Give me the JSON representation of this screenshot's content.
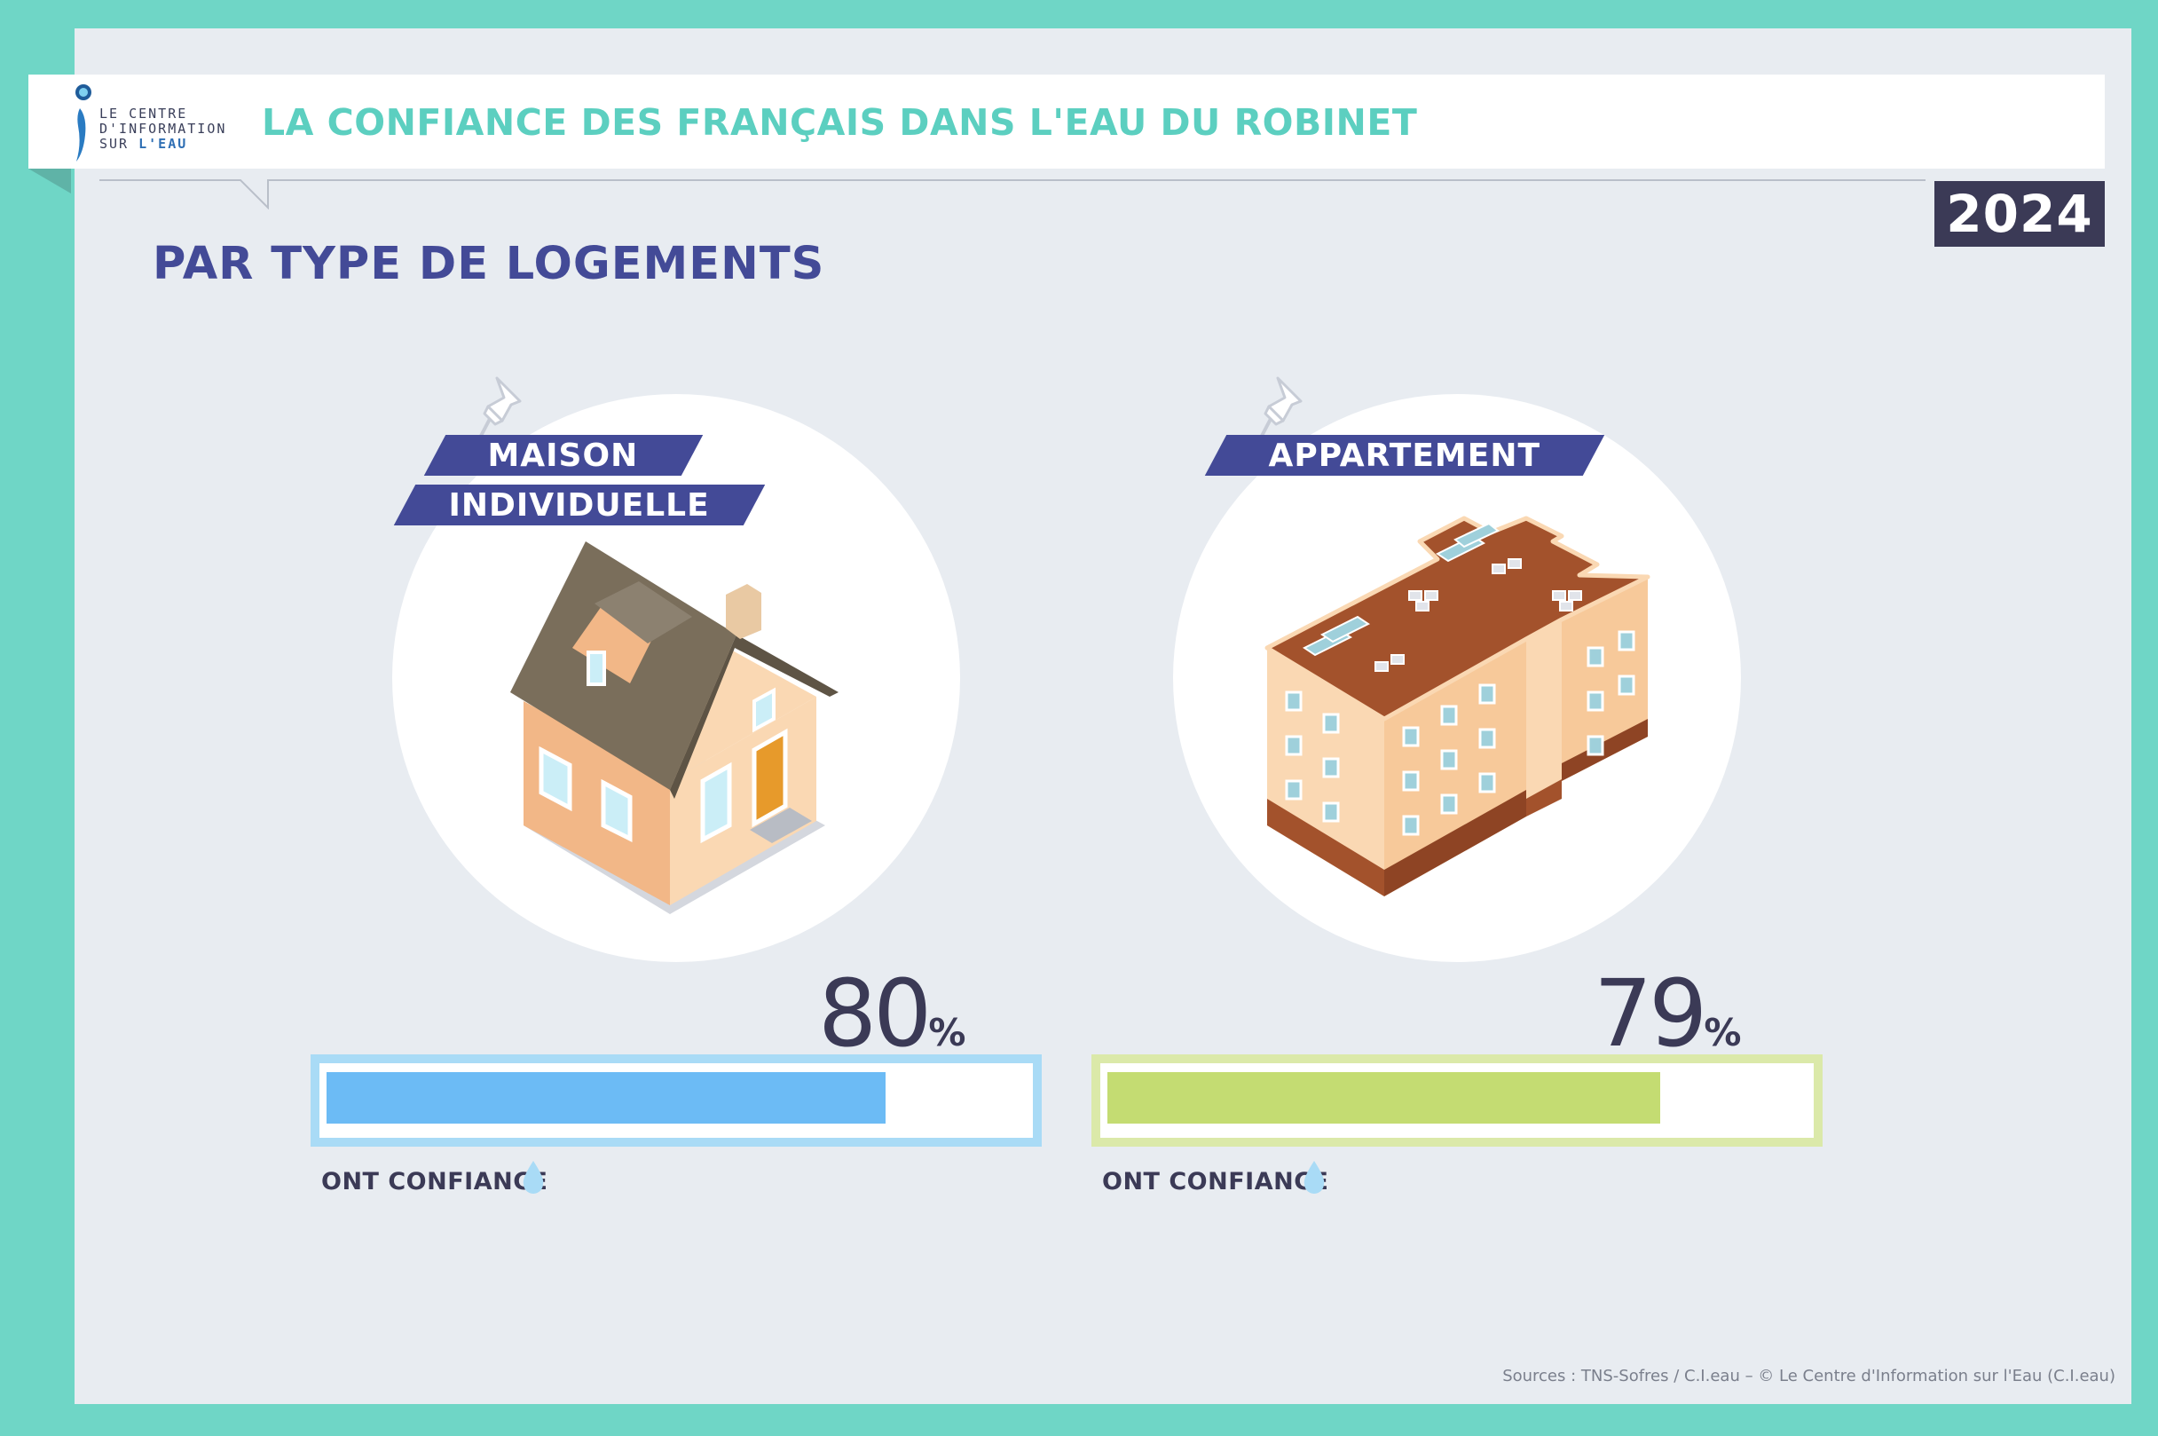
{
  "header": {
    "logo_line1": "LE CENTRE",
    "logo_line2": "D'INFORMATION",
    "logo_line3a": "SUR ",
    "logo_line3b": "L'EAU",
    "title": "LA CONFIANCE DES FRANÇAIS DANS L'EAU DU ROBINET",
    "year": "2024"
  },
  "subtitle": "PAR TYPE DE LOGEMENTS",
  "colors": {
    "maison_bar": "#6cbbf5",
    "maison_border": "#a9dbf6",
    "appartement_bar": "#c4dc72",
    "appartement_border": "#dbe9a9",
    "accent_title": "#5ccfc0",
    "accent_subtitle": "#434a97",
    "frame": "#6fd6c6"
  },
  "icons": [
    "pushpin-icon",
    "house-icon",
    "apartment-building-icon",
    "water-drop-icon",
    "water-drop-logo-icon"
  ],
  "panels": [
    {
      "label_line1": "MAISON",
      "label_line2": "INDIVIDUELLE",
      "value": "80",
      "unit": "%",
      "caption": "ONT CONFIANCE"
    },
    {
      "label_line1": "APPARTEMENT",
      "value": "79",
      "unit": "%",
      "caption": "ONT CONFIANCE"
    }
  ],
  "chart_data": {
    "type": "bar",
    "categories": [
      "MAISON INDIVIDUELLE",
      "APPARTEMENT"
    ],
    "values": [
      80,
      79
    ],
    "unit": "%",
    "ylim": [
      0,
      100
    ],
    "title": "PAR TYPE DE LOGEMENTS",
    "xlabel": "",
    "ylabel": ""
  },
  "source": "Sources : TNS-Sofres / C.I.eau – © Le Centre d'Information sur l'Eau (C.I.eau)"
}
